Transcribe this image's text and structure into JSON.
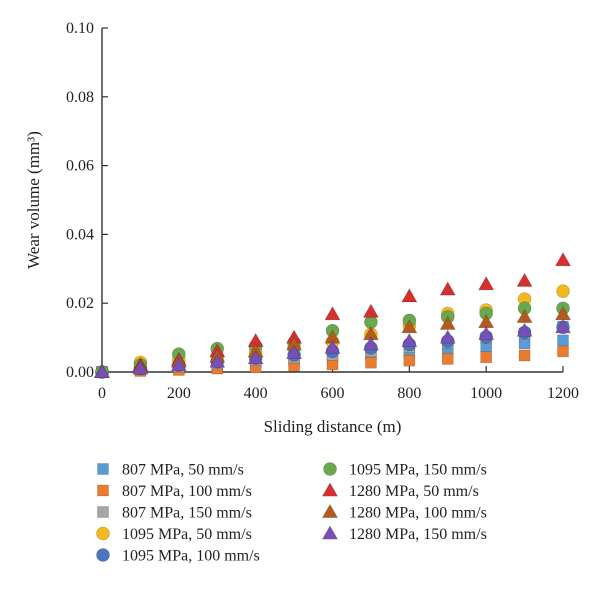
{
  "chart_data": {
    "type": "scatter",
    "xlabel": "Sliding distance (m)",
    "ylabel": "Wear volume (mm³)",
    "xlim": [
      0,
      1200
    ],
    "ylim": [
      0,
      0.1
    ],
    "x_ticks": [
      "0",
      "200",
      "400",
      "600",
      "800",
      "1000",
      "1200"
    ],
    "y_ticks": [
      "0.00",
      "0.02",
      "0.04",
      "0.06",
      "0.08",
      "0.10"
    ],
    "grid": false,
    "legend_position": "bottom, two columns",
    "x": [
      0,
      100,
      200,
      300,
      400,
      500,
      600,
      700,
      800,
      900,
      1000,
      1100,
      1200
    ],
    "series": [
      {
        "name": "807 MPa, 50 mm/s",
        "marker": "square",
        "color": "#5b9bd5",
        "values": [
          0,
          0.0005,
          0.0012,
          0.002,
          0.0027,
          0.0034,
          0.0041,
          0.005,
          0.0058,
          0.0066,
          0.0074,
          0.0083,
          0.0092
        ]
      },
      {
        "name": "807 MPa, 100 mm/s",
        "marker": "square",
        "color": "#e97c30",
        "values": [
          0,
          0.0003,
          0.0006,
          0.001,
          0.0014,
          0.0018,
          0.0022,
          0.0027,
          0.0033,
          0.0038,
          0.0043,
          0.0048,
          0.006
        ]
      },
      {
        "name": "807 MPa, 150 mm/s",
        "marker": "square",
        "color": "#a5a5a5",
        "values": [
          0,
          0.0008,
          0.0016,
          0.0025,
          0.0034,
          0.0042,
          0.005,
          0.006,
          0.0072,
          0.0085,
          0.0098,
          0.0112,
          0.0132
        ]
      },
      {
        "name": "1095 MPa, 50 mm/s",
        "marker": "circle",
        "color": "#f2b81e",
        "values": [
          0,
          0.0028,
          0.0035,
          0.0045,
          0.0058,
          0.0072,
          0.0088,
          0.011,
          0.0135,
          0.017,
          0.018,
          0.0212,
          0.0235
        ]
      },
      {
        "name": "1095 MPa, 100 mm/s",
        "marker": "circle",
        "color": "#4a76c0",
        "values": [
          0,
          0.001,
          0.002,
          0.003,
          0.004,
          0.005,
          0.006,
          0.007,
          0.008,
          0.009,
          0.0102,
          0.0115,
          0.013
        ]
      },
      {
        "name": "1095 MPa, 150 mm/s",
        "marker": "circle",
        "color": "#6aa84f",
        "values": [
          0,
          0.002,
          0.0052,
          0.0068,
          0.0075,
          0.0085,
          0.012,
          0.0145,
          0.015,
          0.016,
          0.017,
          0.0185,
          0.0185
        ]
      },
      {
        "name": "1280 MPa, 50 mm/s",
        "marker": "triangle",
        "color": "#d62f2f",
        "values": [
          0,
          0.002,
          0.0035,
          0.006,
          0.009,
          0.01,
          0.0168,
          0.0175,
          0.022,
          0.024,
          0.0255,
          0.0265,
          0.0325
        ]
      },
      {
        "name": "1280 MPa, 100 mm/s",
        "marker": "triangle",
        "color": "#b35b1e",
        "values": [
          0,
          0.0015,
          0.003,
          0.0045,
          0.006,
          0.008,
          0.01,
          0.011,
          0.013,
          0.014,
          0.0145,
          0.016,
          0.0168
        ]
      },
      {
        "name": "1280 MPa, 150 mm/s",
        "marker": "triangle",
        "color": "#7a4fb5",
        "values": [
          0,
          0.001,
          0.002,
          0.003,
          0.004,
          0.0055,
          0.007,
          0.008,
          0.009,
          0.01,
          0.011,
          0.012,
          0.013
        ]
      }
    ]
  }
}
